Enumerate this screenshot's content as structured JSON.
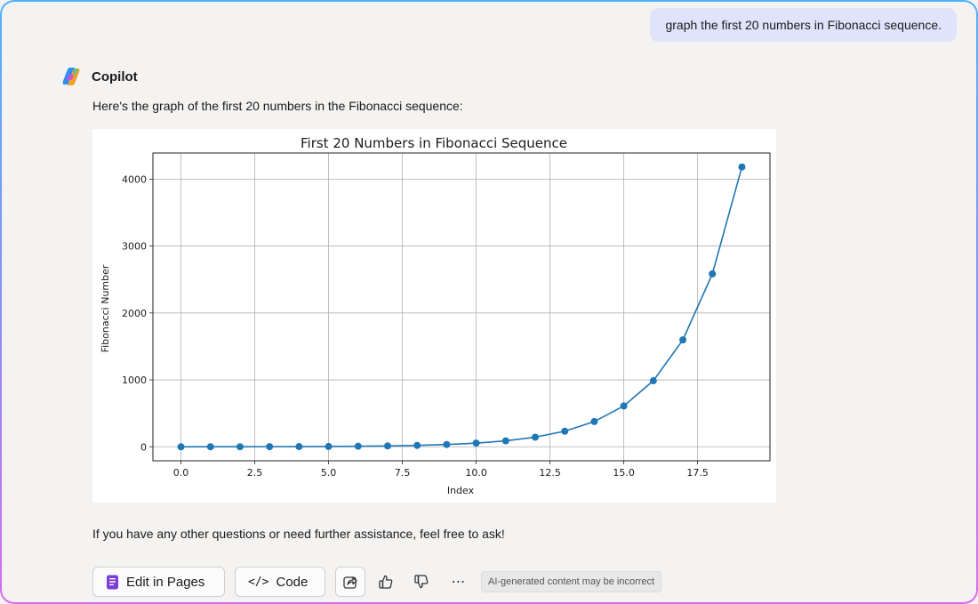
{
  "user_message": "graph the first 20 numbers in Fibonacci sequence.",
  "assistant": {
    "name": "Copilot",
    "intro": "Here's the graph of the first 20 numbers in the Fibonacci sequence:",
    "outro": "If you have any other questions or need further assistance, feel free to ask!"
  },
  "actions": {
    "edit_in_pages": "Edit in Pages",
    "code_glyph": "</>",
    "code": "Code",
    "more": "⋯",
    "disclaimer": "AI-generated content may be incorrect"
  },
  "icons": {
    "copilot_logo": "copilot-logo-icon",
    "pages": "pages-icon",
    "share": "share-icon",
    "like": "thumbs-up-icon",
    "dislike": "thumbs-down-icon",
    "more": "more-icon"
  },
  "colors": {
    "series": "#1f77b4",
    "user_bubble": "#dfe3fb",
    "pages_icon": "#7b3fd8"
  },
  "chart_data": {
    "type": "line",
    "title": "First 20 Numbers in Fibonacci Sequence",
    "xlabel": "Index",
    "ylabel": "Fibonacci Number",
    "x": [
      0,
      1,
      2,
      3,
      4,
      5,
      6,
      7,
      8,
      9,
      10,
      11,
      12,
      13,
      14,
      15,
      16,
      17,
      18,
      19
    ],
    "y": [
      0,
      1,
      1,
      2,
      3,
      5,
      8,
      13,
      21,
      34,
      55,
      89,
      144,
      233,
      377,
      610,
      987,
      1597,
      2584,
      4181
    ],
    "xlim": [
      -0.95,
      19.95
    ],
    "ylim": [
      -209,
      4390
    ],
    "xticks": [
      0,
      2.5,
      5,
      7.5,
      10,
      12.5,
      15,
      17.5
    ],
    "xtick_labels": [
      "0.0",
      "2.5",
      "5.0",
      "7.5",
      "10.0",
      "12.5",
      "15.0",
      "17.5"
    ],
    "yticks": [
      0,
      1000,
      2000,
      3000,
      4000
    ],
    "ytick_labels": [
      "0",
      "1000",
      "2000",
      "3000",
      "4000"
    ],
    "grid": true,
    "markers": true
  }
}
